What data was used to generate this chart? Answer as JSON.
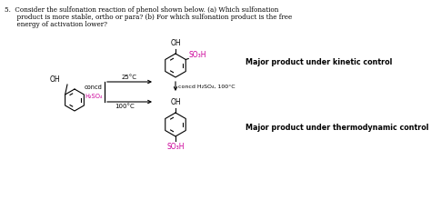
{
  "bg_color": "#ffffff",
  "text_color": "#000000",
  "magenta_color": "#cc0099",
  "title_line1": "5.  Consider the sulfonation reaction of phenol shown below. (a) Which sulfonation",
  "title_line2": "      product is more stable, ortho or para? (b) For which sulfonation product is the free",
  "title_line3": "      energy of activation lower?",
  "label_kinetic": "Major product under kinetic control",
  "label_thermo": "Major product under thermodynamic control",
  "label_25C": "25°C",
  "label_100C": "100°C",
  "label_concd": "concd",
  "label_H2SO4": "H₂SO₄",
  "label_concd_H2SO4_100C": "concd H₂SO₄, 100°C",
  "label_OH": "OH",
  "label_SO3H_top": "SO₃H",
  "label_SO3H_bot": "SO₃H"
}
